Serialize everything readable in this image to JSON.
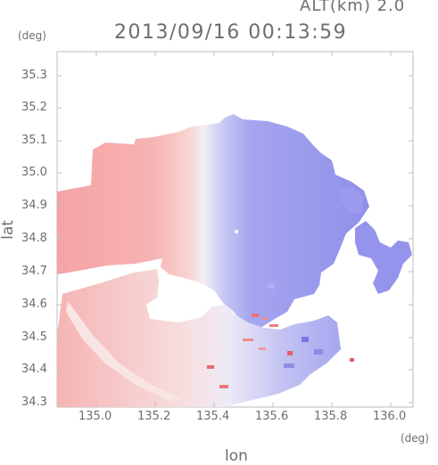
{
  "header": {
    "altitude_label": "ALT(km) 2.0",
    "datetime": "2013/09/16 00:13:59"
  },
  "axes": {
    "x_name": "lon",
    "y_name": "lat",
    "x_unit": "(deg)",
    "y_unit": "(deg)",
    "x_ticks": [
      "135.0",
      "135.2",
      "135.4",
      "135.6",
      "135.8",
      "136.0"
    ],
    "y_ticks": [
      "35.3",
      "35.2",
      "35.1",
      "35.0",
      "34.9",
      "34.8",
      "34.7",
      "34.6",
      "34.5",
      "34.4",
      "34.3"
    ]
  },
  "colors": {
    "receding": "#f4a6a6",
    "approaching": "#9a9af0",
    "neutral": "#f2f0f6",
    "frame": "#bdbdbd"
  }
}
